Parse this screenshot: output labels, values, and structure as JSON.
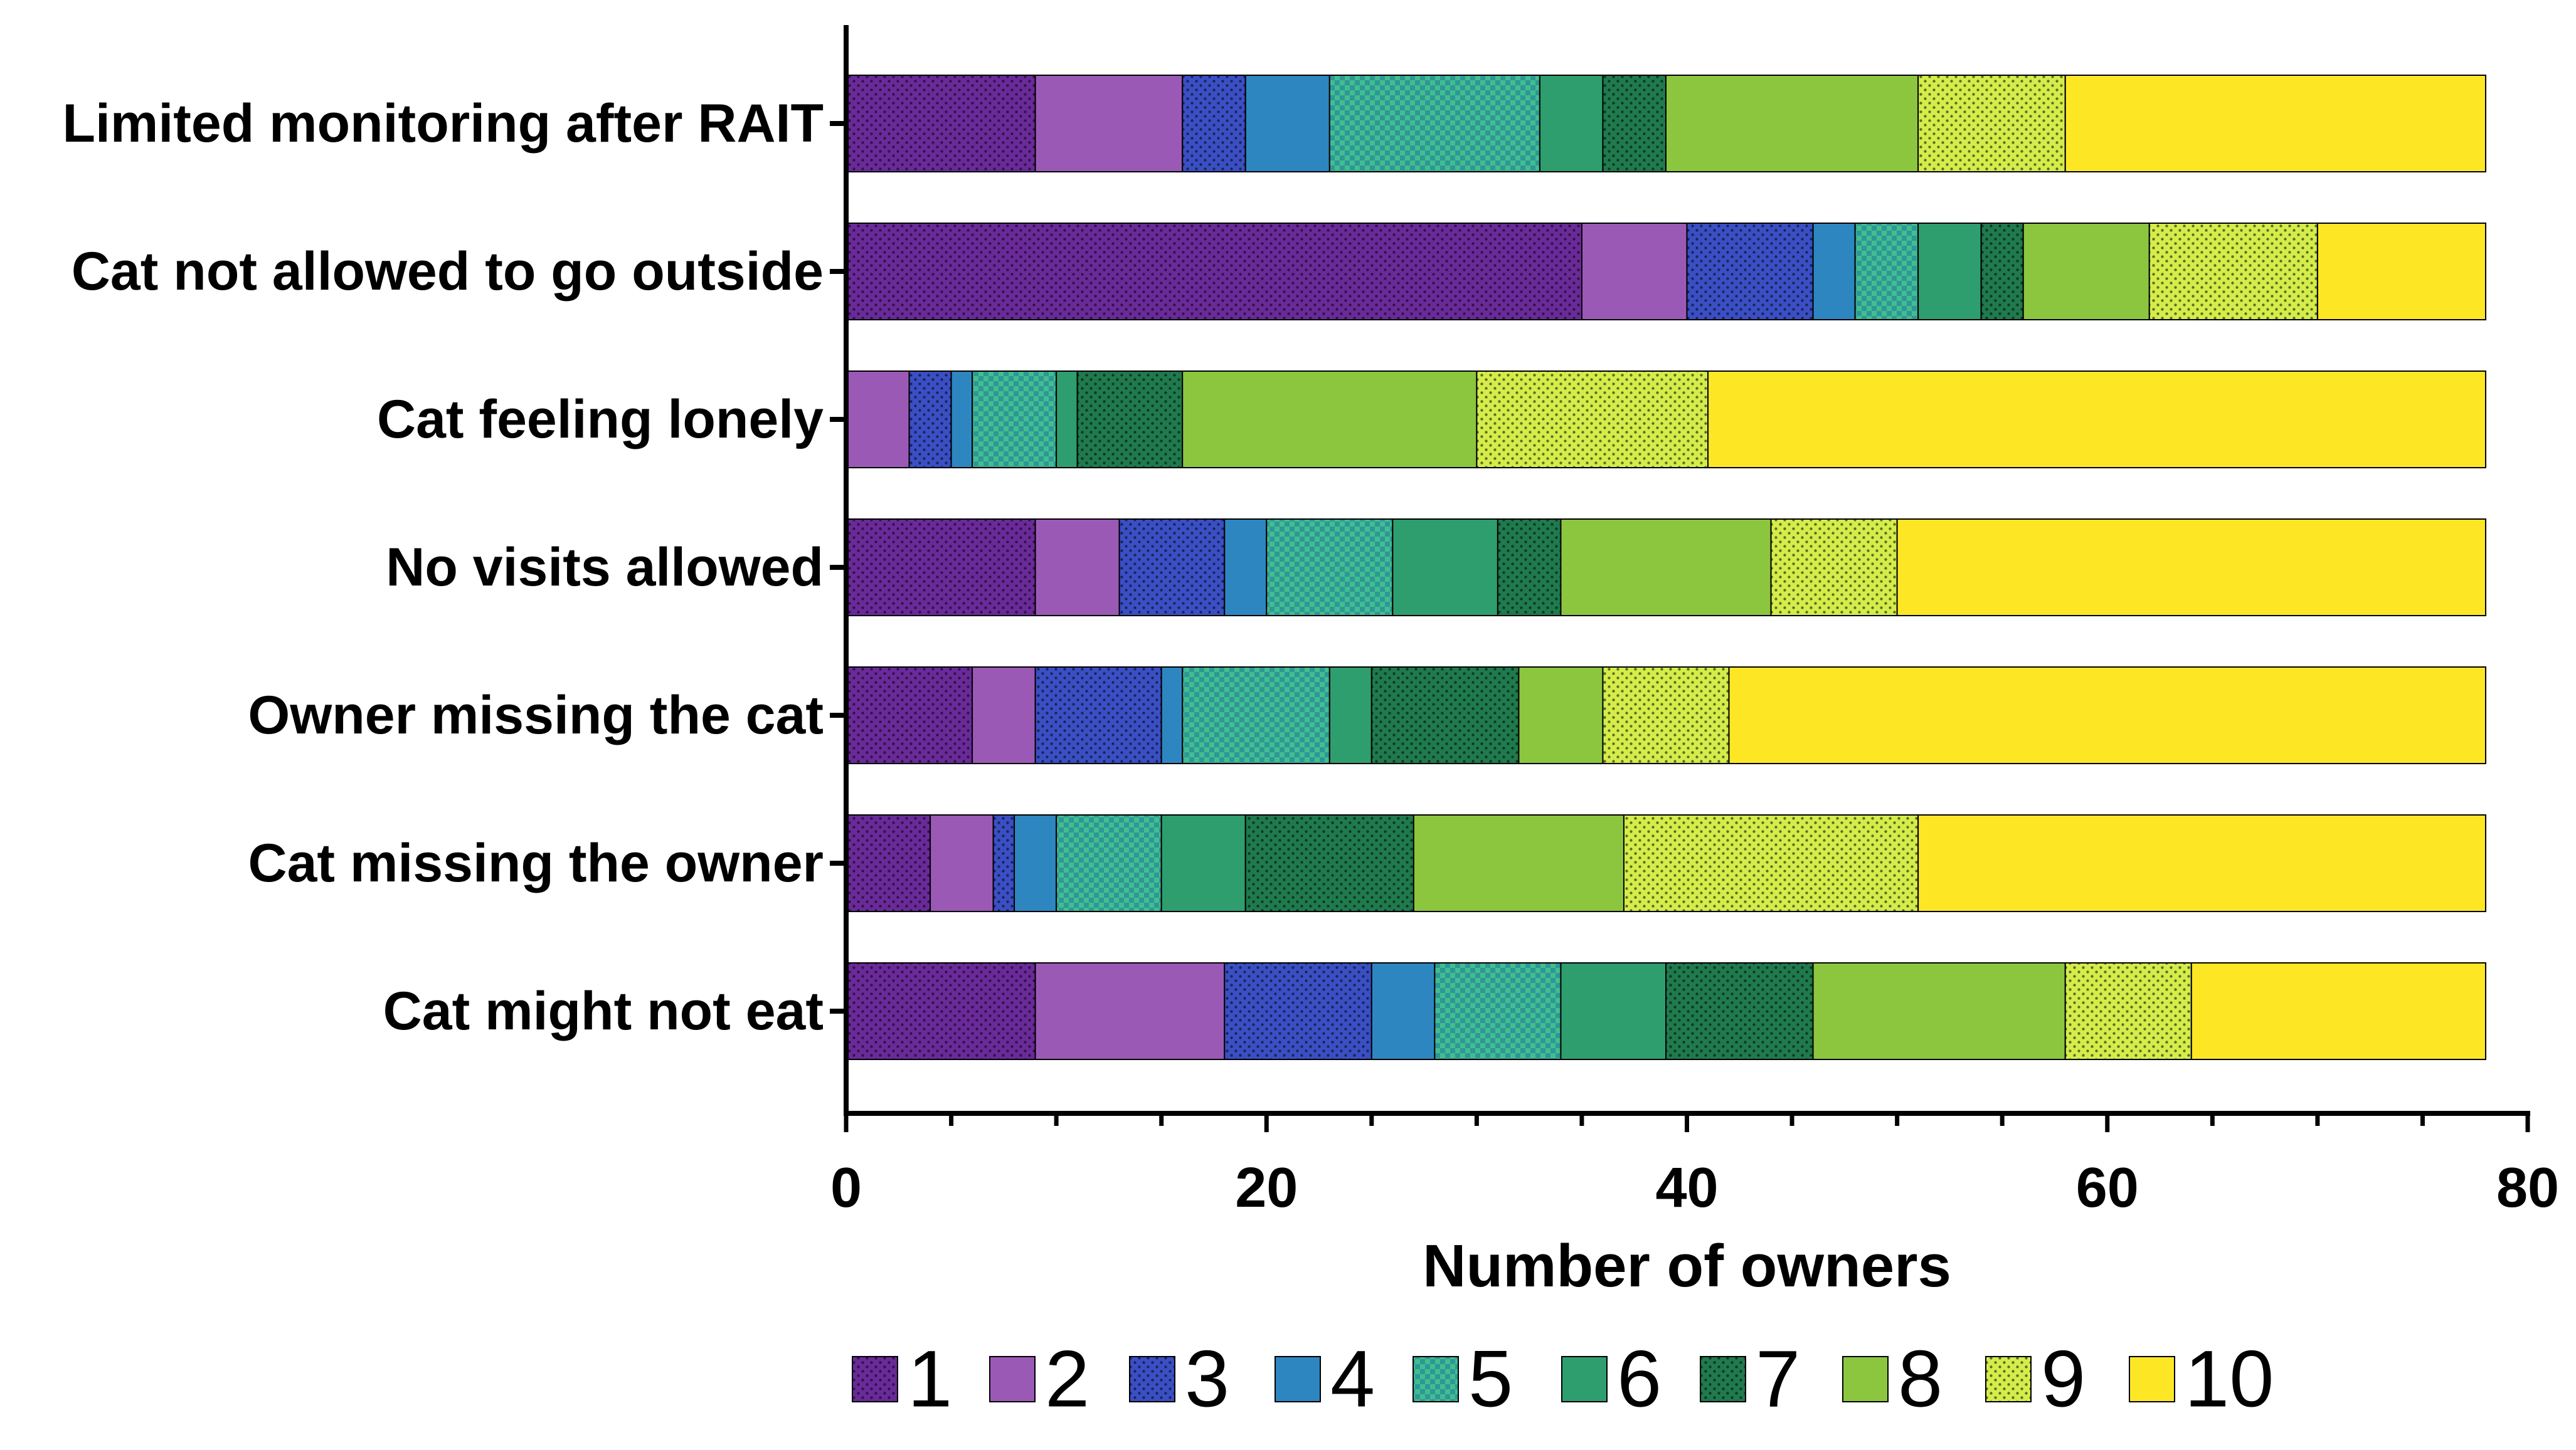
{
  "chart_data": {
    "type": "bar",
    "orientation": "horizontal",
    "stacked": true,
    "title": "",
    "xlabel": "Number of owners",
    "ylabel": "",
    "xlim": [
      0,
      80
    ],
    "x_ticks": [
      0,
      20,
      40,
      60,
      80
    ],
    "x_tick_labels": [
      "0",
      "20",
      "40",
      "60",
      "80"
    ],
    "x_minor_step": 5,
    "grid": false,
    "legend_position": "bottom",
    "categories": [
      "Limited monitoring after RAIT",
      "Cat not allowed to go outside",
      "Cat feeling lonely",
      "No visits allowed",
      "Owner missing the cat",
      "Cat missing the owner",
      "Cat might not eat"
    ],
    "series": [
      {
        "name": "1",
        "color": "#6a2a99",
        "pattern": "dots",
        "values": [
          9,
          35,
          0,
          9,
          6,
          4,
          9
        ]
      },
      {
        "name": "2",
        "color": "#9b59b6",
        "pattern": "none",
        "values": [
          7,
          5,
          3,
          4,
          3,
          3,
          9
        ]
      },
      {
        "name": "3",
        "color": "#3a4fc4",
        "pattern": "dots",
        "values": [
          3,
          6,
          2,
          5,
          6,
          1,
          7
        ]
      },
      {
        "name": "4",
        "color": "#2e86c1",
        "pattern": "none",
        "values": [
          4,
          2,
          1,
          2,
          1,
          2,
          3
        ]
      },
      {
        "name": "5",
        "color": "#3fbf8f",
        "pattern": "checker",
        "values": [
          10,
          3,
          4,
          6,
          7,
          5,
          6
        ]
      },
      {
        "name": "6",
        "color": "#2e9e6e",
        "pattern": "none",
        "values": [
          3,
          3,
          1,
          5,
          2,
          4,
          5
        ]
      },
      {
        "name": "7",
        "color": "#1f7a4d",
        "pattern": "dots",
        "values": [
          3,
          2,
          5,
          3,
          7,
          8,
          7
        ]
      },
      {
        "name": "8",
        "color": "#8cc63f",
        "pattern": "none",
        "values": [
          12,
          6,
          14,
          10,
          4,
          10,
          12
        ]
      },
      {
        "name": "9",
        "color": "#d4ed4a",
        "pattern": "dots",
        "values": [
          7,
          8,
          11,
          6,
          6,
          14,
          6
        ]
      },
      {
        "name": "10",
        "color": "#fde725",
        "pattern": "none",
        "values": [
          20,
          8,
          37,
          28,
          36,
          27,
          14
        ]
      }
    ]
  }
}
